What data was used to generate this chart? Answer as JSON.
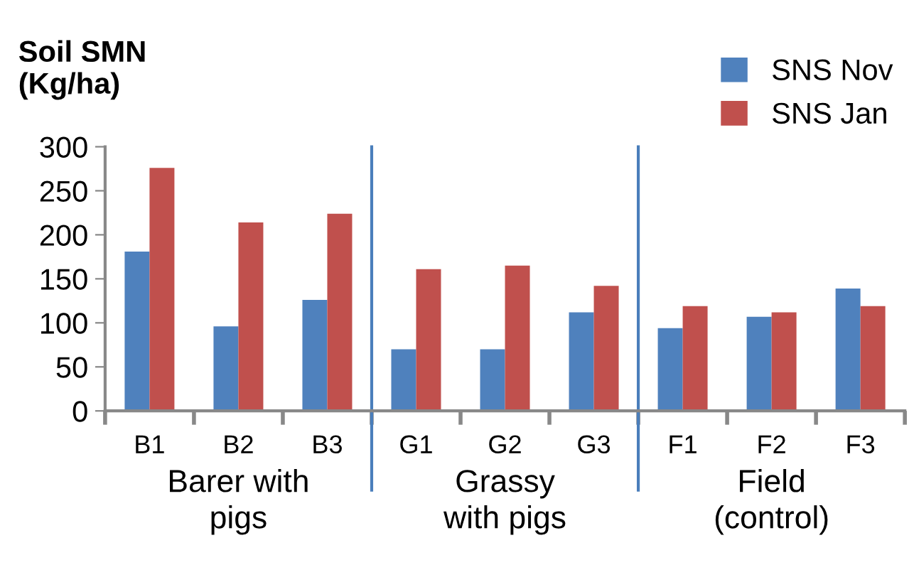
{
  "chart_data": {
    "type": "bar",
    "ylabel": "Soil SMN\n(Kg/ha)",
    "categories": [
      "B1",
      "B2",
      "B3",
      "G1",
      "G2",
      "G3",
      "F1",
      "F2",
      "F3"
    ],
    "series": [
      {
        "name": "SNS Nov",
        "color": "#4f81bd",
        "values": [
          181,
          96,
          126,
          70,
          70,
          112,
          94,
          107,
          139
        ]
      },
      {
        "name": "SNS Jan",
        "color": "#c0504d",
        "values": [
          276,
          214,
          224,
          161,
          165,
          142,
          119,
          112,
          119
        ]
      }
    ],
    "ylim": [
      0,
      300
    ],
    "yticks": [
      0,
      50,
      100,
      150,
      200,
      250,
      300
    ],
    "annotations": [
      "Barer with\npigs",
      "Grassy\nwith pigs",
      "Field\n(control)"
    ],
    "grid": false,
    "legend": "top right"
  }
}
